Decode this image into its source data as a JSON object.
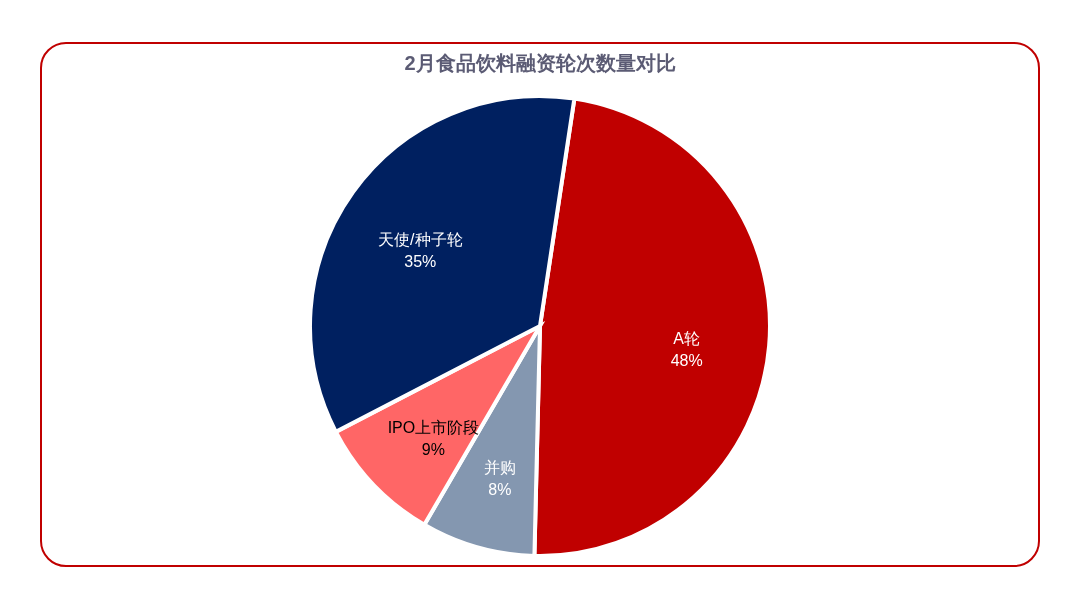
{
  "chart_data": {
    "type": "pie",
    "title": "2月食品饮料融资轮次数量对比",
    "categories": [
      "A轮",
      "并购",
      "IPO上市阶段",
      "天使/种子轮"
    ],
    "values": [
      48,
      8,
      9,
      35
    ],
    "colors": [
      "#c00000",
      "#8497b0",
      "#ff6666",
      "#002060"
    ],
    "value_labels": [
      "48%",
      "8%",
      "9%",
      "35%"
    ]
  }
}
